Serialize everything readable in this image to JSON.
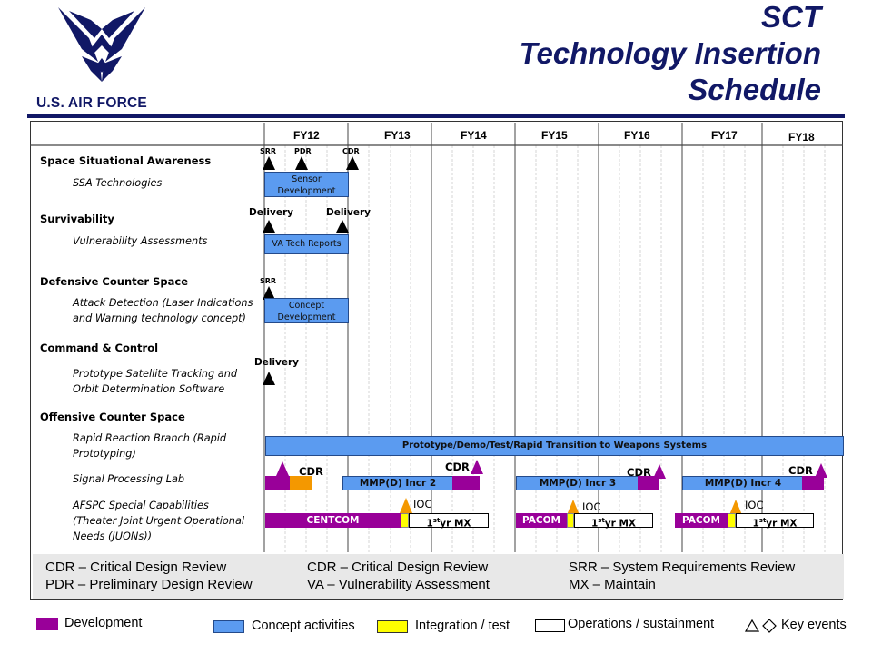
{
  "header": {
    "title_lines": [
      "SCT",
      "Technology Insertion",
      "Schedule"
    ],
    "logo_text": "U.S. AIR FORCE"
  },
  "fiscal_years": [
    "FY12",
    "FY13",
    "FY14",
    "FY15",
    "FY16",
    "FY17",
    "FY18"
  ],
  "categories": {
    "ssa": "Space Situational Awareness",
    "ssa_sub": "SSA Technologies",
    "surv": "Survivability",
    "surv_sub": "Vulnerability Assessments",
    "dcs": "Defensive Counter Space",
    "dcs_sub": [
      "Attack Detection (Laser Indications",
      "and Warning technology concept)"
    ],
    "c2": "Command & Control",
    "c2_sub": [
      "Prototype Satellite Tracking and",
      "Orbit Determination Software"
    ],
    "ocs": "Offensive Counter Space",
    "ocs_sub1": [
      "Rapid Reaction Branch (Rapid",
      "Prototyping)"
    ],
    "ocs_sub2": "Signal Processing Lab",
    "ocs_sub3": [
      "AFSPC Special Capabilities",
      "(Theater Joint Urgent Operational",
      "Needs (JUONs))"
    ]
  },
  "milestones": {
    "srr": "SRR",
    "pdr": "PDR",
    "cdr": "CDR",
    "delivery": "Delivery",
    "cdr_big": "CDR",
    "ioc": "IOC"
  },
  "bars": {
    "sensor_dev": [
      "Sensor",
      "Development"
    ],
    "va_reports": "VA Tech Reports",
    "concept_dev": [
      "Concept",
      "Development"
    ],
    "prototype": "Prototype/Demo/Test/Rapid Transition to Weapons Systems",
    "mmp2": "MMP(D) Incr 2",
    "mmp3": "MMP(D) Incr 3",
    "mmp4": "MMP(D) Incr 4",
    "centcom": "CENTCOM",
    "pacom": "PACOM",
    "mx_prefix": "1",
    "mx_sup": "st",
    "mx_suffix": "yr MX"
  },
  "abbreviations": {
    "cdr": "CDR – Critical Design Review",
    "pdr": "PDR – Preliminary Design Review",
    "srr": "SRR – System Requirements Review",
    "va": "VA – Vulnerability Assessment",
    "mx": "MX – Maintain"
  },
  "legend": {
    "development": "Development",
    "concept": "Concept activities",
    "integration": "Integration / test",
    "operations": "Operations / sustainment",
    "key_events": "Key events"
  },
  "colors": {
    "navy": "#111866",
    "concept_blue": "#5b9bf0",
    "development_purple": "#990099",
    "integration_yellow": "#ffff00",
    "milestone_orange": "#f49800"
  }
}
